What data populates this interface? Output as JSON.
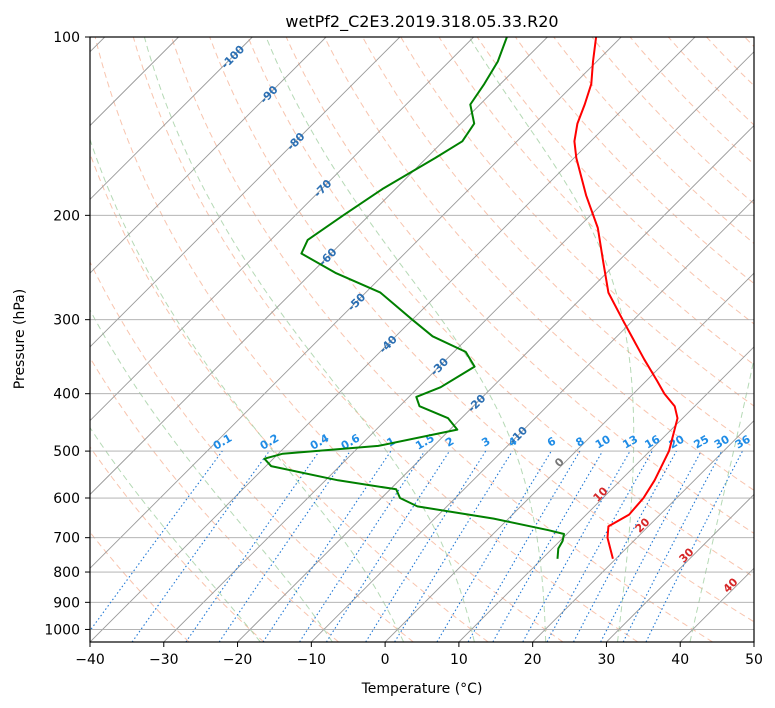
{
  "chart_data": {
    "type": "line",
    "subtype": "skew-T log-P",
    "title": "wetPf2_C2E3.2019.318.05.33.R20",
    "xlabel": "Temperature (°C)",
    "ylabel": "Pressure (hPa)",
    "xlim": [
      -40,
      50
    ],
    "ylim": [
      1050,
      100
    ],
    "y_scale": "log",
    "grid": true,
    "x_ticks": [
      "−40",
      "−30",
      "−20",
      "−10",
      "0",
      "10",
      "20",
      "30",
      "40",
      "50"
    ],
    "y_ticks": [
      "100",
      "200",
      "300",
      "400",
      "500",
      "600",
      "700",
      "800",
      "900",
      "1000"
    ],
    "series": [
      {
        "color": "#ff0000",
        "values": [
          {
            "p": 760,
            "t": 19.6
          },
          {
            "p": 700,
            "t": 16
          },
          {
            "p": 670,
            "t": 14.6
          },
          {
            "p": 640,
            "t": 15.8
          },
          {
            "p": 600,
            "t": 15.5
          },
          {
            "p": 560,
            "t": 14.6
          },
          {
            "p": 500,
            "t": 12.6
          },
          {
            "p": 440,
            "t": 9.3
          },
          {
            "p": 420,
            "t": 7.3
          },
          {
            "p": 400,
            "t": 4.2
          },
          {
            "p": 380,
            "t": 1.4
          },
          {
            "p": 350,
            "t": -3.2
          },
          {
            "p": 300,
            "t": -11.5
          },
          {
            "p": 270,
            "t": -17.1
          },
          {
            "p": 240,
            "t": -21.9
          },
          {
            "p": 210,
            "t": -27.3
          },
          {
            "p": 185,
            "t": -33.3
          },
          {
            "p": 160,
            "t": -39.7
          },
          {
            "p": 150,
            "t": -42.2
          },
          {
            "p": 140,
            "t": -44.2
          },
          {
            "p": 130,
            "t": -45.8
          },
          {
            "p": 120,
            "t": -47.7
          },
          {
            "p": 110,
            "t": -50.5
          },
          {
            "p": 100,
            "t": -53.4
          }
        ]
      },
      {
        "color": "#008000",
        "values": [
          {
            "p": 760,
            "t": 12.1
          },
          {
            "p": 730,
            "t": 10.8
          },
          {
            "p": 710,
            "t": 10.4
          },
          {
            "p": 690,
            "t": 9.6
          },
          {
            "p": 680,
            "t": 7.0
          },
          {
            "p": 650,
            "t": -2.0
          },
          {
            "p": 620,
            "t": -14.0
          },
          {
            "p": 600,
            "t": -17.5
          },
          {
            "p": 580,
            "t": -19.2
          },
          {
            "p": 560,
            "t": -28.3
          },
          {
            "p": 530,
            "t": -39.3
          },
          {
            "p": 515,
            "t": -41.2
          },
          {
            "p": 505,
            "t": -39.4
          },
          {
            "p": 490,
            "t": -27.5
          },
          {
            "p": 460,
            "t": -19.0
          },
          {
            "p": 440,
            "t": -21.8
          },
          {
            "p": 420,
            "t": -27.3
          },
          {
            "p": 405,
            "t": -29.0
          },
          {
            "p": 390,
            "t": -27.0
          },
          {
            "p": 360,
            "t": -25.2
          },
          {
            "p": 340,
            "t": -28.4
          },
          {
            "p": 320,
            "t": -35.0
          },
          {
            "p": 300,
            "t": -40.0
          },
          {
            "p": 270,
            "t": -48.0
          },
          {
            "p": 250,
            "t": -56.8
          },
          {
            "p": 232,
            "t": -64.0
          },
          {
            "p": 220,
            "t": -65.0
          },
          {
            "p": 200,
            "t": -63.5
          },
          {
            "p": 180,
            "t": -61.7
          },
          {
            "p": 160,
            "t": -58.8
          },
          {
            "p": 150,
            "t": -57.4
          },
          {
            "p": 140,
            "t": -58.2
          },
          {
            "p": 130,
            "t": -61.3
          },
          {
            "p": 120,
            "t": -62.2
          },
          {
            "p": 110,
            "t": -63.4
          },
          {
            "p": 100,
            "t": -65.5
          }
        ]
      }
    ],
    "isotherm_labels": [
      "-100",
      "-90",
      "-80",
      "-70",
      "-60",
      "-50",
      "-40",
      "-30",
      "-20",
      "-10"
    ],
    "mixing_ratio_labels": [
      "0.1",
      "0.2",
      "0.4",
      "0.6",
      "1",
      "1.5",
      "2",
      "3",
      "4",
      "6",
      "8",
      "10",
      "13",
      "16",
      "20",
      "25",
      "30",
      "36"
    ],
    "moist_adiabat_labels": [
      "0",
      "10",
      "20",
      "30",
      "40"
    ]
  }
}
